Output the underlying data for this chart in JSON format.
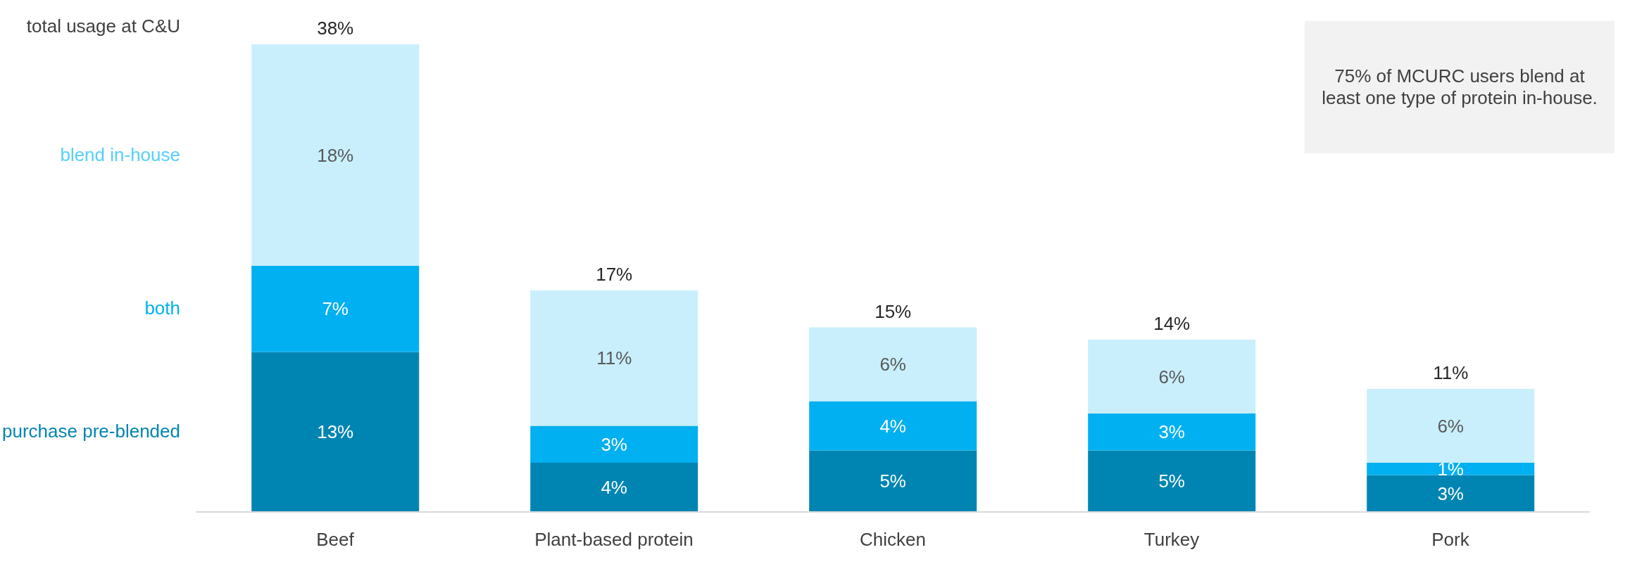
{
  "chart_data": {
    "type": "bar",
    "stacked": true,
    "categories": [
      "Beef",
      "Plant-based protein",
      "Chicken",
      "Turkey",
      "Pork"
    ],
    "series": [
      {
        "name": "purchase pre-blended",
        "color": "#0085b2",
        "values": [
          13,
          4,
          5,
          5,
          3
        ],
        "value_labels": [
          "13%",
          "4%",
          "5%",
          "5%",
          "3%"
        ]
      },
      {
        "name": "both",
        "color": "#00b0f0",
        "values": [
          7,
          3,
          4,
          3,
          1
        ],
        "value_labels": [
          "7%",
          "3%",
          "4%",
          "3%",
          "1%"
        ]
      },
      {
        "name": "blend in-house",
        "color": "#c9effc",
        "values": [
          18,
          11,
          6,
          6,
          6
        ],
        "value_labels": [
          "18%",
          "11%",
          "6%",
          "6%",
          "6%"
        ]
      }
    ],
    "totals": [
      "38%",
      "17%",
      "15%",
      "14%",
      "11%"
    ],
    "annotations": [
      "total usage at C&U",
      "75% of MCURC users blend at least one type of protein in-house."
    ],
    "legend": "left"
  }
}
